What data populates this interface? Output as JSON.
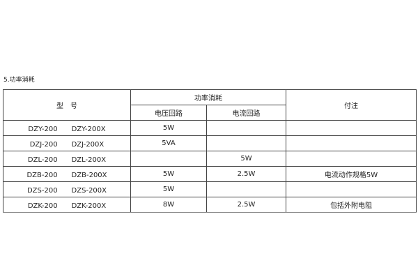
{
  "title": "5.功率消耗",
  "table": {
    "header": {
      "model": "型　号",
      "power": "功率消耗",
      "voltage_circuit": "电压回路",
      "current_circuit": "电流回路",
      "note": "付注"
    },
    "rows": [
      {
        "model": "DZY-200　　DZY-200X",
        "voltage": "5W",
        "current": "",
        "note": ""
      },
      {
        "model": "DZJ-200　　DZJ-200X",
        "voltage": "5VA",
        "current": "",
        "note": ""
      },
      {
        "model": "DZL-200　　DZL-200X",
        "voltage": "",
        "current": "5W",
        "note": ""
      },
      {
        "model": "DZB-200　　DZB-200X",
        "voltage": "5W",
        "current": "2.5W",
        "note": "电流动作规格5W"
      },
      {
        "model": "DZS-200　　DZS-200X",
        "voltage": "5W",
        "current": "",
        "note": ""
      },
      {
        "model": "DZK-200　　DZK-200X",
        "voltage": "8W",
        "current": "2.5W",
        "note": "包括外附电阻"
      }
    ]
  }
}
